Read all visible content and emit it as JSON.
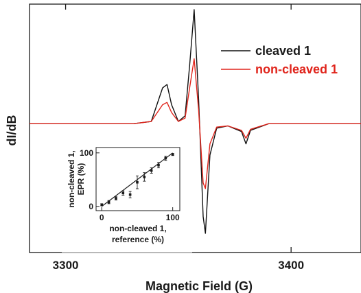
{
  "chart_data": [
    {
      "type": "line",
      "title": "",
      "xlabel": "Magnetic Field (G)",
      "ylabel": "dI/dB",
      "xlim": [
        3284,
        3431
      ],
      "ylim": [
        -1.0,
        1.0
      ],
      "x_ticks": [
        3300,
        3400
      ],
      "y_ticks_shown": false,
      "grid": false,
      "legend_position": "top-right",
      "series": [
        {
          "name": "cleaved 1",
          "color": "#111111",
          "x": [
            3284,
            3330,
            3338,
            3343,
            3345,
            3347,
            3350,
            3353,
            3355,
            3357,
            3359,
            3361,
            3362,
            3364,
            3367,
            3372,
            3378,
            3380,
            3382,
            3390,
            3431
          ],
          "y": [
            -0.02,
            -0.02,
            0.0,
            0.3,
            0.33,
            0.15,
            0.0,
            0.05,
            0.5,
            1.0,
            0.2,
            -0.85,
            -1.0,
            -0.3,
            -0.06,
            -0.04,
            -0.09,
            -0.2,
            -0.08,
            -0.02,
            -0.02
          ]
        },
        {
          "name": "non-cleaved 1",
          "color": "#e0241b",
          "x": [
            3284,
            3330,
            3338,
            3343,
            3345,
            3347,
            3350,
            3353,
            3355,
            3357,
            3359,
            3361,
            3362,
            3364,
            3367,
            3372,
            3378,
            3380,
            3382,
            3390,
            3431
          ],
          "y": [
            -0.02,
            -0.02,
            0.0,
            0.15,
            0.17,
            0.08,
            0.0,
            0.03,
            0.3,
            0.56,
            0.1,
            -0.55,
            -0.6,
            -0.2,
            -0.05,
            -0.04,
            -0.08,
            -0.15,
            -0.07,
            -0.02,
            -0.02
          ]
        }
      ]
    },
    {
      "type": "scatter",
      "title": "",
      "xlabel_lines": [
        "non-cleaved 1,",
        "reference (%)"
      ],
      "ylabel_lines": [
        "non-cleaved 1,",
        "EPR (%)"
      ],
      "xlim": [
        -8,
        110
      ],
      "ylim": [
        -8,
        110
      ],
      "x_ticks": [
        0,
        100
      ],
      "y_ticks": [
        0,
        100
      ],
      "grid": false,
      "series": [
        {
          "name": "",
          "x": [
            0,
            10,
            20,
            30,
            40,
            50,
            60,
            70,
            80,
            90,
            100
          ],
          "y": [
            3,
            8,
            15,
            25,
            22,
            45,
            55,
            67,
            77,
            90,
            97
          ],
          "yerr": [
            2,
            3,
            3,
            4,
            6,
            12,
            8,
            5,
            5,
            4,
            2
          ]
        }
      ],
      "fit_line": {
        "x": [
          0,
          100
        ],
        "y": [
          0,
          100
        ]
      }
    }
  ]
}
